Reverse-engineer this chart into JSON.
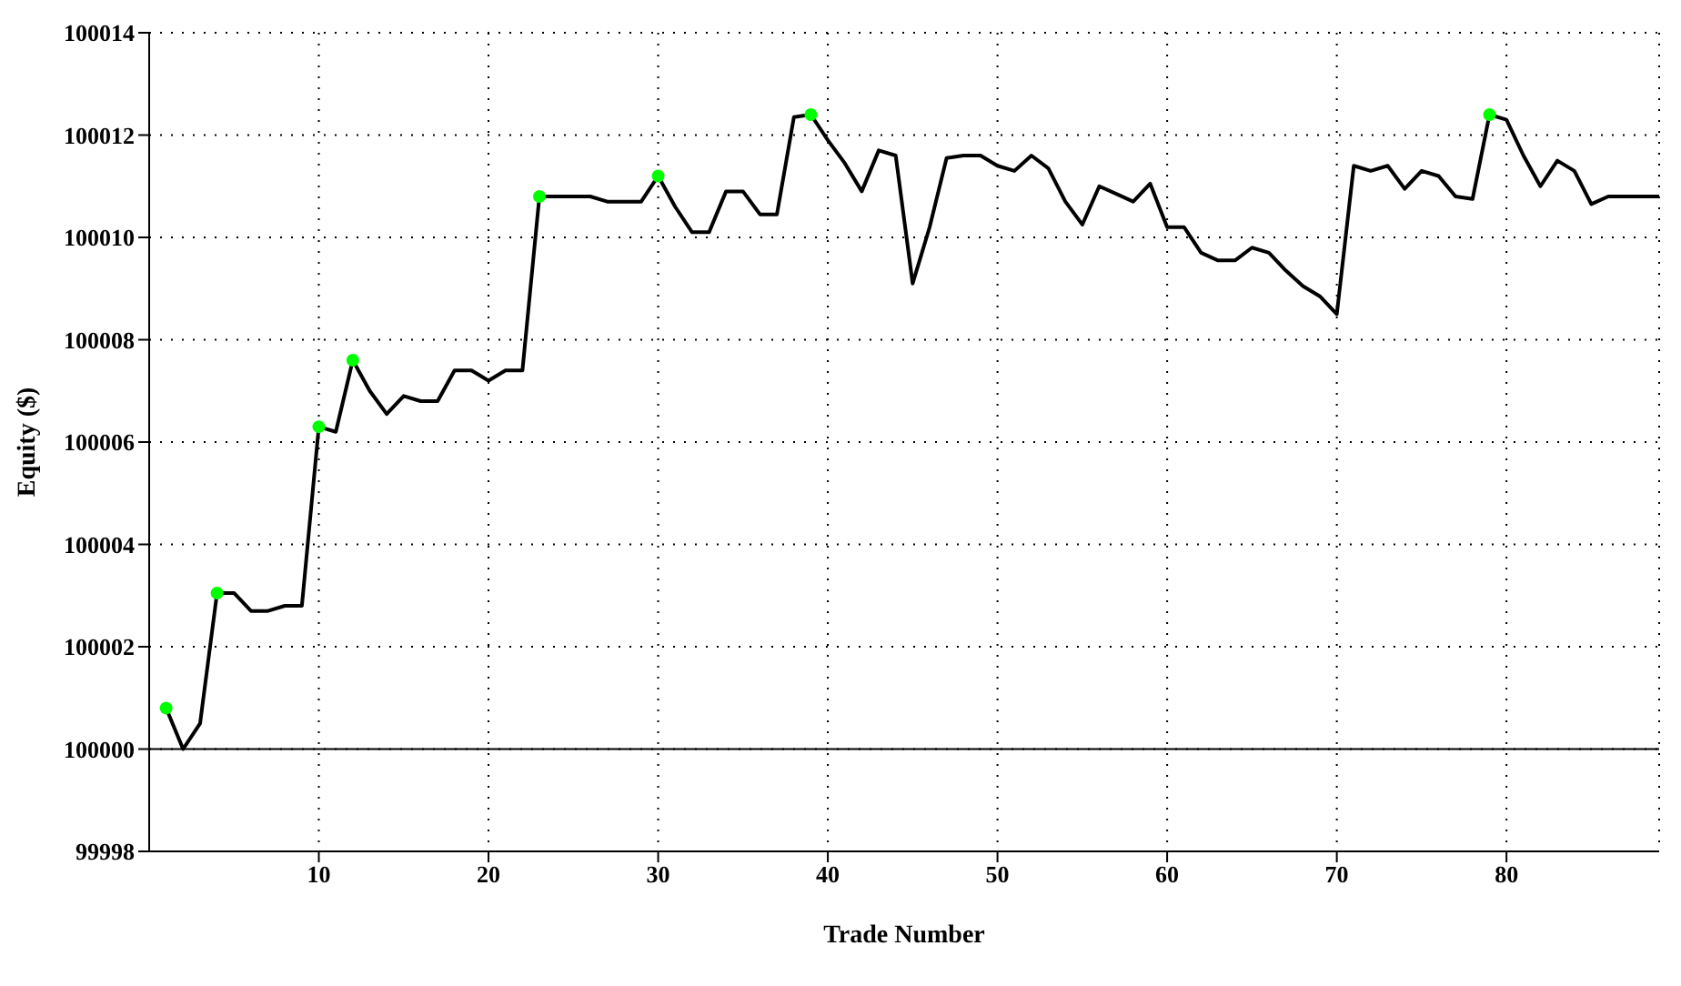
{
  "chart_data": {
    "type": "line",
    "xlabel": "Trade Number",
    "ylabel": "Equity ($)",
    "xlim": [
      0,
      89
    ],
    "xticks": [
      10,
      20,
      30,
      40,
      50,
      60,
      70,
      80
    ],
    "ylim": [
      99998,
      100014
    ],
    "yticks": [
      99998,
      100000,
      100002,
      100004,
      100006,
      100008,
      100010,
      100012,
      100014
    ],
    "grid": true,
    "marker": "none",
    "line_style": "solid",
    "series": [
      {
        "color": "#000000",
        "x": [
          1,
          2,
          3,
          4,
          5,
          6,
          7,
          8,
          9,
          10,
          11,
          12,
          13,
          14,
          15,
          16,
          17,
          18,
          19,
          20,
          21,
          22,
          23,
          24,
          25,
          26,
          27,
          28,
          29,
          30,
          31,
          32,
          33,
          34,
          35,
          36,
          37,
          38,
          39,
          40,
          41,
          42,
          43,
          44,
          45,
          46,
          47,
          48,
          49,
          50,
          51,
          52,
          53,
          54,
          55,
          56,
          57,
          58,
          59,
          60,
          61,
          62,
          63,
          64,
          65,
          66,
          67,
          68,
          69,
          70,
          71,
          72,
          73,
          74,
          75,
          76,
          77,
          78,
          79,
          80,
          81,
          82,
          83,
          84,
          85,
          86,
          87,
          88,
          89
        ],
        "values": [
          100000.8,
          100000.0,
          100000.5,
          100003.05,
          100003.05,
          100002.7,
          100002.7,
          100002.8,
          100002.8,
          100006.3,
          100006.2,
          100007.6,
          100007.0,
          100006.55,
          100006.9,
          100006.8,
          100006.8,
          100007.4,
          100007.4,
          100007.2,
          100007.4,
          100007.4,
          100010.8,
          100010.8,
          100010.8,
          100010.8,
          100010.7,
          100010.7,
          100010.7,
          100011.2,
          100010.6,
          100010.1,
          100010.1,
          100010.9,
          100010.9,
          100010.45,
          100010.45,
          100012.35,
          100012.4,
          100011.9,
          100011.45,
          100010.9,
          100011.7,
          100011.6,
          100009.1,
          100010.2,
          100011.55,
          100011.6,
          100011.6,
          100011.4,
          100011.3,
          100011.6,
          100011.35,
          100010.7,
          100010.25,
          100011.0,
          100010.85,
          100010.7,
          100011.05,
          100010.2,
          100010.2,
          100009.7,
          100009.55,
          100009.55,
          100009.8,
          100009.7,
          100009.35,
          100009.05,
          100008.85,
          100008.5,
          100011.4,
          100011.3,
          100011.4,
          100010.95,
          100011.3,
          100011.2,
          100010.8,
          100010.75,
          100012.4,
          100012.3,
          100011.6,
          100011.0,
          100011.5,
          100011.3,
          100010.65,
          100010.8,
          100010.8,
          100010.8,
          100010.8
        ]
      },
      {
        "type": "scatter",
        "color": "#00ff00",
        "marker": "circle",
        "x": [
          1,
          4,
          10,
          12,
          23,
          30,
          39,
          79
        ],
        "values": [
          100000.8,
          100003.05,
          100006.3,
          100007.6,
          100010.8,
          100011.2,
          100012.4,
          100012.4
        ]
      }
    ],
    "ref_lines": [
      {
        "axis": "y",
        "value": 100000,
        "color": "#000000",
        "line_style": "solid"
      }
    ]
  }
}
